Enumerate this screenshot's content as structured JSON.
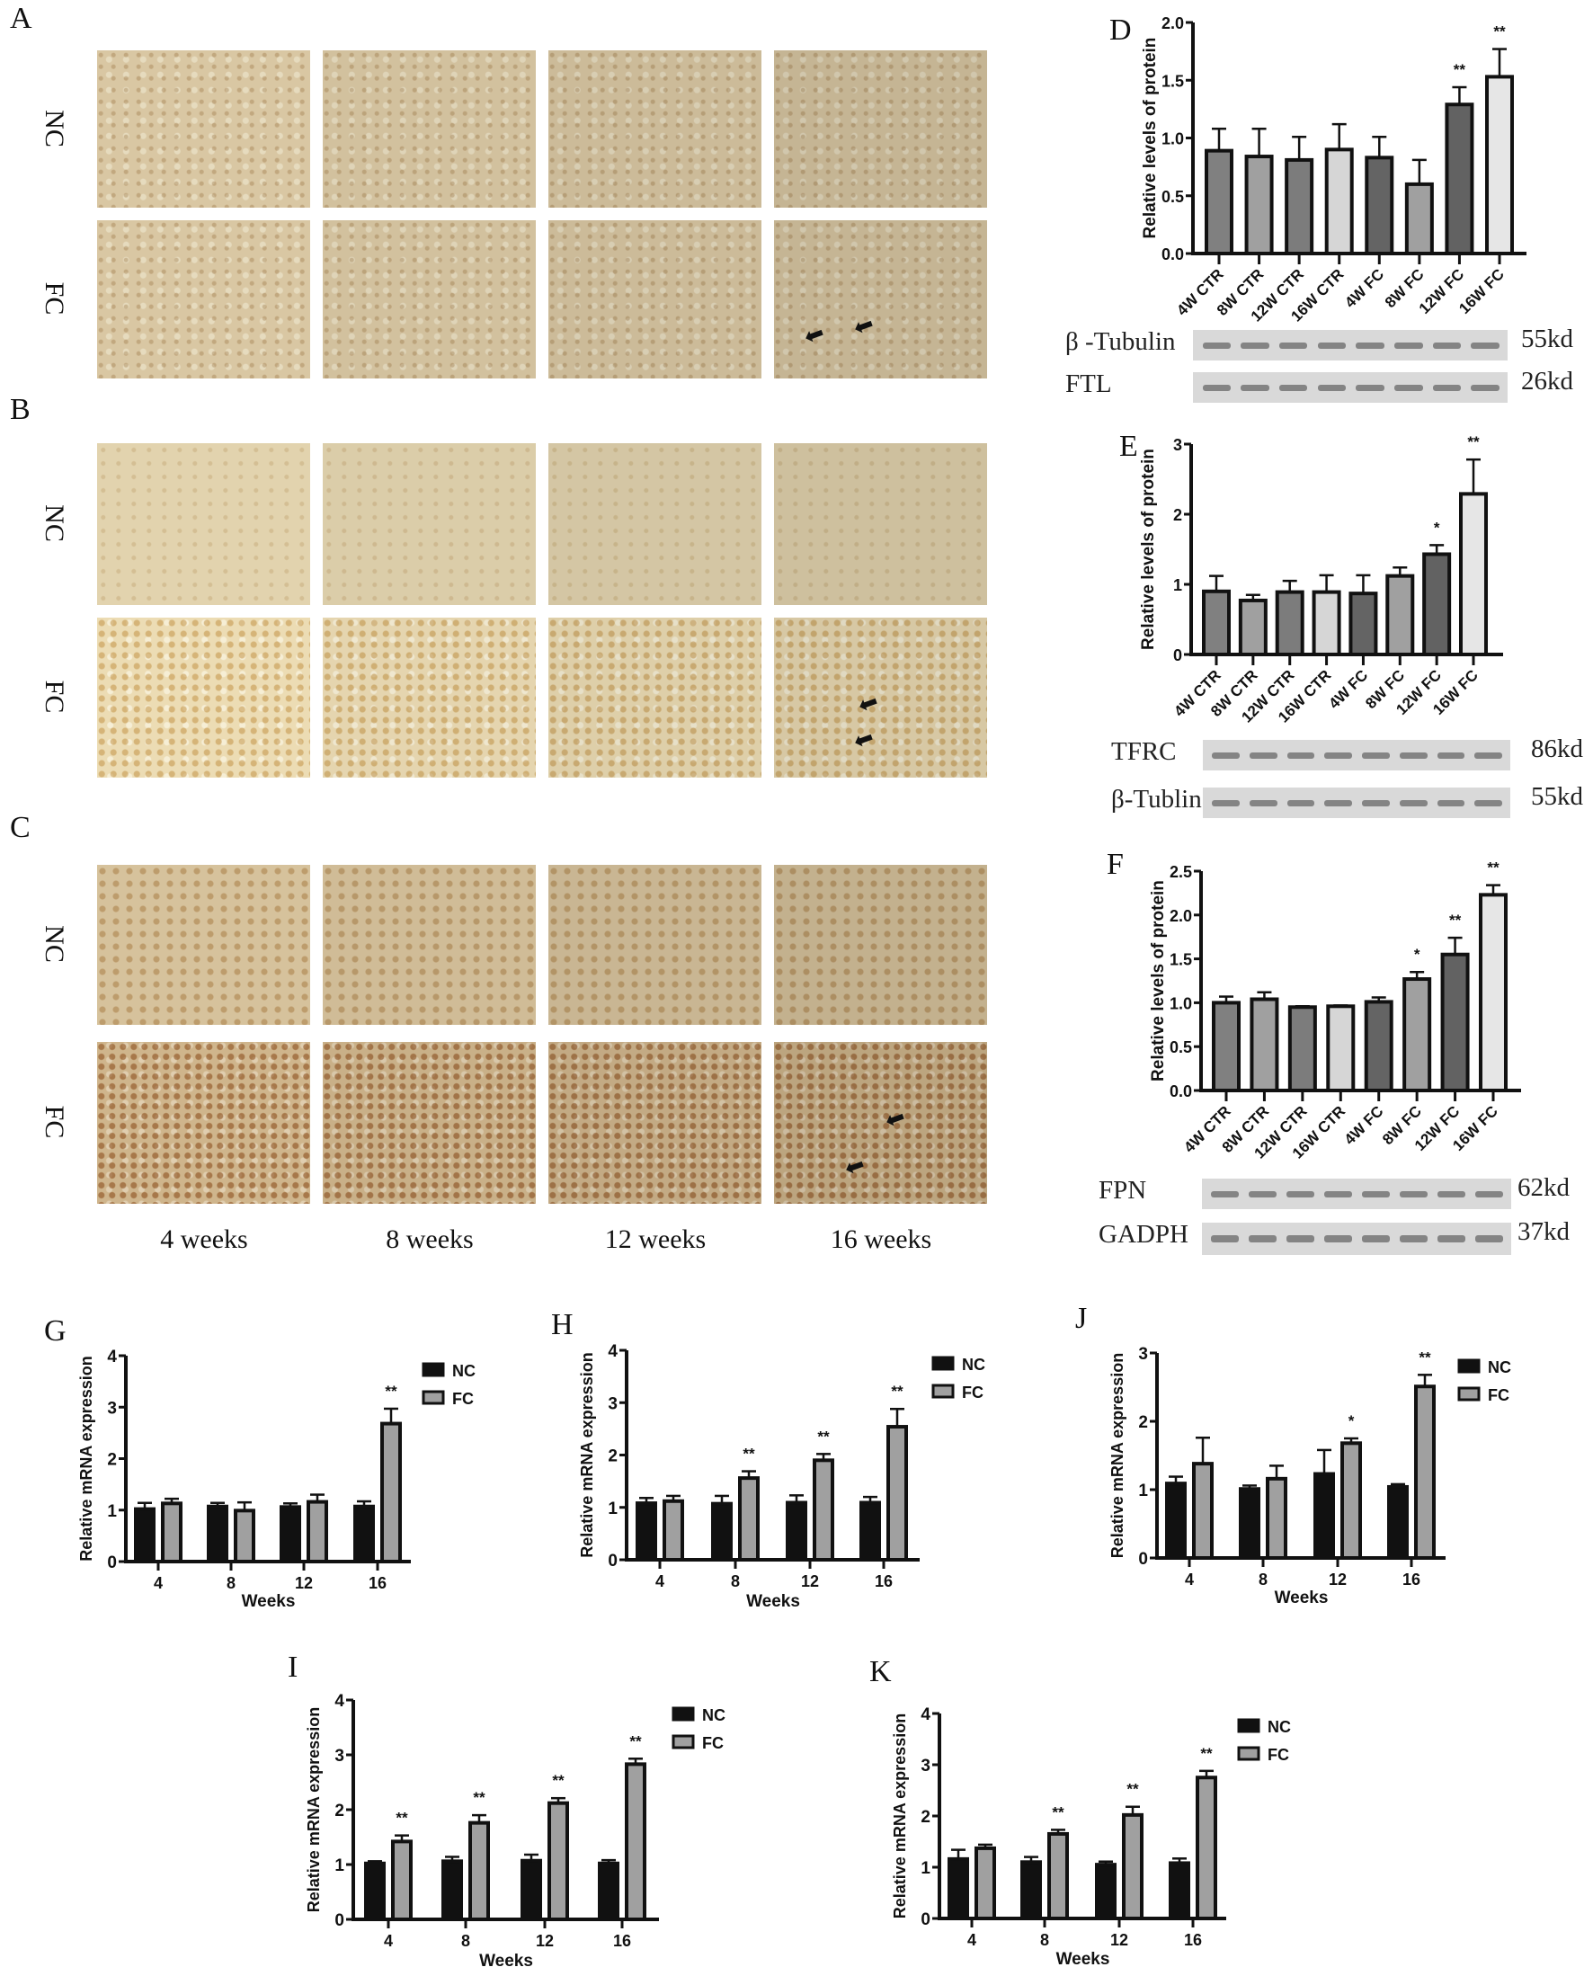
{
  "micrographs": {
    "panels": [
      {
        "label": "A",
        "rows": [
          "NC",
          "FC"
        ]
      },
      {
        "label": "B",
        "rows": [
          "NC",
          "FC"
        ]
      },
      {
        "label": "C",
        "rows": [
          "NC",
          "FC"
        ]
      }
    ],
    "columns": [
      "4 weeks",
      "8 weeks",
      "12 weeks",
      "16 weeks"
    ],
    "arrow_icon": "arrow-left-icon"
  },
  "blots": {
    "D": [
      {
        "label": "β -Tubulin",
        "kd": "55kd"
      },
      {
        "label": "FTL",
        "kd": "26kd"
      }
    ],
    "E": [
      {
        "label": "TFRC",
        "kd": "86kd"
      },
      {
        "label": "β-Tublin",
        "kd": "55kd"
      }
    ],
    "F": [
      {
        "label": "FPN",
        "kd": "62kd"
      },
      {
        "label": "GADPH",
        "kd": "37kd"
      }
    ]
  },
  "chart_data": [
    {
      "panel": "D",
      "type": "bar",
      "ylabel": "Relative levels of protein",
      "ylim": [
        0,
        2.0
      ],
      "yticks": [
        "0.0",
        "0.5",
        "1.0",
        "1.5",
        "2.0"
      ],
      "categories": [
        "4W CTR",
        "8W CTR",
        "12W CTR",
        "16W CTR",
        "4W FC",
        "8W FC",
        "12W FC",
        "16W FC"
      ],
      "values": [
        0.89,
        0.84,
        0.81,
        0.9,
        0.83,
        0.6,
        1.29,
        1.53
      ],
      "error_upper": [
        1.08,
        1.08,
        1.01,
        1.12,
        1.01,
        0.81,
        1.44,
        1.77
      ],
      "significance": [
        "",
        "",
        "",
        "",
        "",
        "",
        "**",
        "**"
      ],
      "colors": [
        "#808080",
        "#a0a0a0",
        "#7c7c7c",
        "#d6d6d6",
        "#646464",
        "#a0a0a0",
        "#626262",
        "#e6e6e6"
      ]
    },
    {
      "panel": "E",
      "type": "bar",
      "ylabel": "Relative levels of protein",
      "ylim": [
        0,
        3
      ],
      "yticks": [
        "0",
        "1",
        "2",
        "3"
      ],
      "categories": [
        "4W CTR",
        "8W CTR",
        "12W CTR",
        "16W CTR",
        "4W FC",
        "8W FC",
        "12W FC",
        "16W FC"
      ],
      "values": [
        0.9,
        0.77,
        0.89,
        0.89,
        0.87,
        1.12,
        1.43,
        2.29
      ],
      "error_upper": [
        1.12,
        0.85,
        1.05,
        1.13,
        1.13,
        1.24,
        1.56,
        2.78
      ],
      "significance": [
        "",
        "",
        "",
        "",
        "",
        "",
        "*",
        "**"
      ],
      "colors": [
        "#808080",
        "#a0a0a0",
        "#7c7c7c",
        "#d6d6d6",
        "#646464",
        "#a0a0a0",
        "#626262",
        "#e6e6e6"
      ]
    },
    {
      "panel": "F",
      "type": "bar",
      "ylabel": "Relative levels of protein",
      "ylim": [
        0,
        2.5
      ],
      "yticks": [
        "0.0",
        "0.5",
        "1.0",
        "1.5",
        "2.0",
        "2.5"
      ],
      "categories": [
        "4W CTR",
        "8W CTR",
        "12W CTR",
        "16W CTR",
        "4W FC",
        "8W FC",
        "12W FC",
        "16W FC"
      ],
      "values": [
        1.0,
        1.04,
        0.95,
        0.96,
        1.01,
        1.27,
        1.55,
        2.23
      ],
      "error_upper": [
        1.07,
        1.12,
        0.96,
        0.97,
        1.06,
        1.35,
        1.74,
        2.34
      ],
      "significance": [
        "",
        "",
        "",
        "",
        "",
        "*",
        "**",
        "**"
      ],
      "colors": [
        "#808080",
        "#a0a0a0",
        "#7c7c7c",
        "#d6d6d6",
        "#646464",
        "#a0a0a0",
        "#626262",
        "#e6e6e6"
      ]
    },
    {
      "panel": "G",
      "type": "bar",
      "ylabel": "Relative mRNA expression",
      "xlabel": "Weeks",
      "ylim": [
        0,
        4
      ],
      "yticks": [
        "0",
        "1",
        "2",
        "3",
        "4"
      ],
      "categories": [
        "4",
        "8",
        "12",
        "16"
      ],
      "legend": "top-right",
      "series": [
        {
          "name": "NC",
          "color": "#111111",
          "values": [
            1.02,
            1.07,
            1.06,
            1.07
          ],
          "error_upper": [
            1.14,
            1.14,
            1.13,
            1.17
          ],
          "significance": [
            "",
            "",
            "",
            ""
          ]
        },
        {
          "name": "FC",
          "color": "#a0a0a0",
          "values": [
            1.13,
            0.99,
            1.16,
            2.68
          ],
          "error_upper": [
            1.22,
            1.15,
            1.3,
            2.97
          ],
          "significance": [
            "",
            "",
            "",
            "**"
          ]
        }
      ]
    },
    {
      "panel": "H",
      "type": "bar",
      "ylabel": "Relative mRNA expression",
      "xlabel": "Weeks",
      "ylim": [
        0,
        4
      ],
      "yticks": [
        "0",
        "1",
        "2",
        "3",
        "4"
      ],
      "categories": [
        "4",
        "8",
        "12",
        "16"
      ],
      "legend": "top-right",
      "series": [
        {
          "name": "NC",
          "color": "#111111",
          "values": [
            1.08,
            1.07,
            1.09,
            1.09
          ],
          "error_upper": [
            1.18,
            1.22,
            1.23,
            1.2
          ],
          "significance": [
            "",
            "",
            "",
            ""
          ]
        },
        {
          "name": "FC",
          "color": "#a0a0a0",
          "values": [
            1.12,
            1.56,
            1.9,
            2.54
          ],
          "error_upper": [
            1.22,
            1.69,
            2.02,
            2.88
          ],
          "significance": [
            "",
            "**",
            "**",
            "**"
          ]
        }
      ]
    },
    {
      "panel": "J",
      "type": "bar",
      "ylabel": "Relative mRNA expression",
      "xlabel": "Weeks",
      "ylim": [
        0,
        3
      ],
      "yticks": [
        "0",
        "1",
        "2",
        "3"
      ],
      "categories": [
        "4",
        "8",
        "12",
        "16"
      ],
      "legend": "top-right",
      "series": [
        {
          "name": "NC",
          "color": "#111111",
          "values": [
            1.09,
            1.01,
            1.23,
            1.04
          ],
          "error_upper": [
            1.19,
            1.06,
            1.58,
            1.08
          ],
          "significance": [
            "",
            "",
            "",
            ""
          ]
        },
        {
          "name": "FC",
          "color": "#a0a0a0",
          "values": [
            1.38,
            1.16,
            1.68,
            2.51
          ],
          "error_upper": [
            1.76,
            1.35,
            1.75,
            2.68
          ],
          "significance": [
            "",
            "",
            "*",
            "**"
          ]
        }
      ]
    },
    {
      "panel": "I",
      "type": "bar",
      "ylabel": "Relative mRNA expression",
      "xlabel": "Weeks",
      "ylim": [
        0,
        4
      ],
      "yticks": [
        "0",
        "1",
        "2",
        "3",
        "4"
      ],
      "categories": [
        "4",
        "8",
        "12",
        "16"
      ],
      "legend": "top-right",
      "series": [
        {
          "name": "NC",
          "color": "#111111",
          "values": [
            1.02,
            1.06,
            1.07,
            1.02
          ],
          "error_upper": [
            1.06,
            1.14,
            1.18,
            1.08
          ],
          "significance": [
            "",
            "",
            "",
            ""
          ]
        },
        {
          "name": "FC",
          "color": "#a0a0a0",
          "values": [
            1.42,
            1.76,
            2.12,
            2.83
          ],
          "error_upper": [
            1.53,
            1.9,
            2.21,
            2.93
          ],
          "significance": [
            "**",
            "**",
            "**",
            "**"
          ]
        }
      ]
    },
    {
      "panel": "K",
      "type": "bar",
      "ylabel": "Relative mRNA expression",
      "xlabel": "Weeks",
      "ylim": [
        0,
        4
      ],
      "yticks": [
        "0",
        "1",
        "2",
        "3",
        "4"
      ],
      "categories": [
        "4",
        "8",
        "12",
        "16"
      ],
      "legend": "top-right",
      "series": [
        {
          "name": "NC",
          "color": "#111111",
          "values": [
            1.16,
            1.1,
            1.05,
            1.08
          ],
          "error_upper": [
            1.34,
            1.2,
            1.11,
            1.17
          ],
          "significance": [
            "",
            "",
            "",
            ""
          ]
        },
        {
          "name": "FC",
          "color": "#a0a0a0",
          "values": [
            1.37,
            1.65,
            2.02,
            2.75
          ],
          "error_upper": [
            1.44,
            1.73,
            2.18,
            2.88
          ],
          "significance": [
            "",
            "**",
            "**",
            "**"
          ]
        }
      ]
    }
  ]
}
